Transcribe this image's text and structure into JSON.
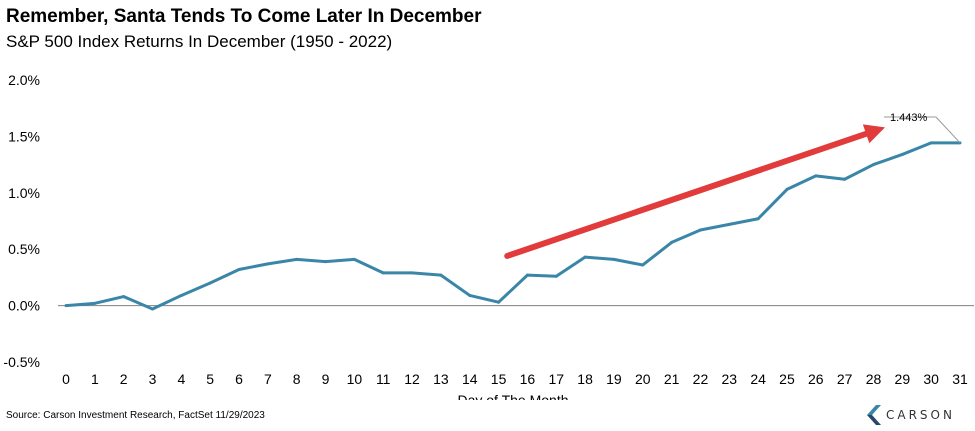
{
  "header": {
    "title": "Remember, Santa Tends To Come Later In December",
    "subtitle": "S&P 500 Index Returns In December (1950 - 2022)"
  },
  "footer": {
    "source": "Source: Carson Investment Research, FactSet 11/29/2023",
    "logo_text": "CARSON",
    "logo_icon": "carson-chevron-icon"
  },
  "colors": {
    "line": "#3a86a8",
    "arrow": "#e23b3b",
    "axis": "#808080"
  },
  "chart_data": {
    "type": "line",
    "title": "Remember, Santa Tends To Come Later In December",
    "subtitle": "S&P 500 Index Returns In December (1950 - 2022)",
    "xlabel": "Day of The Month",
    "ylabel": "",
    "ylim": [
      -0.5,
      2.0
    ],
    "y_ticks": [
      "-0.5%",
      "0.0%",
      "0.5%",
      "1.0%",
      "1.5%",
      "2.0%"
    ],
    "y_tick_values": [
      -0.5,
      0.0,
      0.5,
      1.0,
      1.5,
      2.0
    ],
    "x": [
      0,
      1,
      2,
      3,
      4,
      5,
      6,
      7,
      8,
      9,
      10,
      11,
      12,
      13,
      14,
      15,
      16,
      17,
      18,
      19,
      20,
      21,
      22,
      23,
      24,
      25,
      26,
      27,
      28,
      29,
      30,
      31
    ],
    "series": [
      {
        "values": [
          0.0,
          0.02,
          0.08,
          -0.03,
          0.09,
          0.2,
          0.32,
          0.37,
          0.41,
          0.39,
          0.41,
          0.29,
          0.29,
          0.27,
          0.09,
          0.03,
          0.27,
          0.26,
          0.43,
          0.41,
          0.36,
          0.56,
          0.67,
          0.72,
          0.77,
          1.03,
          1.15,
          1.12,
          1.25,
          1.34,
          1.443,
          1.443
        ]
      }
    ],
    "annotation": {
      "text": "1.443%",
      "day": 31,
      "value": 1.443
    },
    "arrow": {
      "from": {
        "day": 15.3,
        "value": 0.44
      },
      "to": {
        "day": 28.4,
        "value": 1.58
      }
    },
    "grid": false,
    "legend": "none"
  }
}
